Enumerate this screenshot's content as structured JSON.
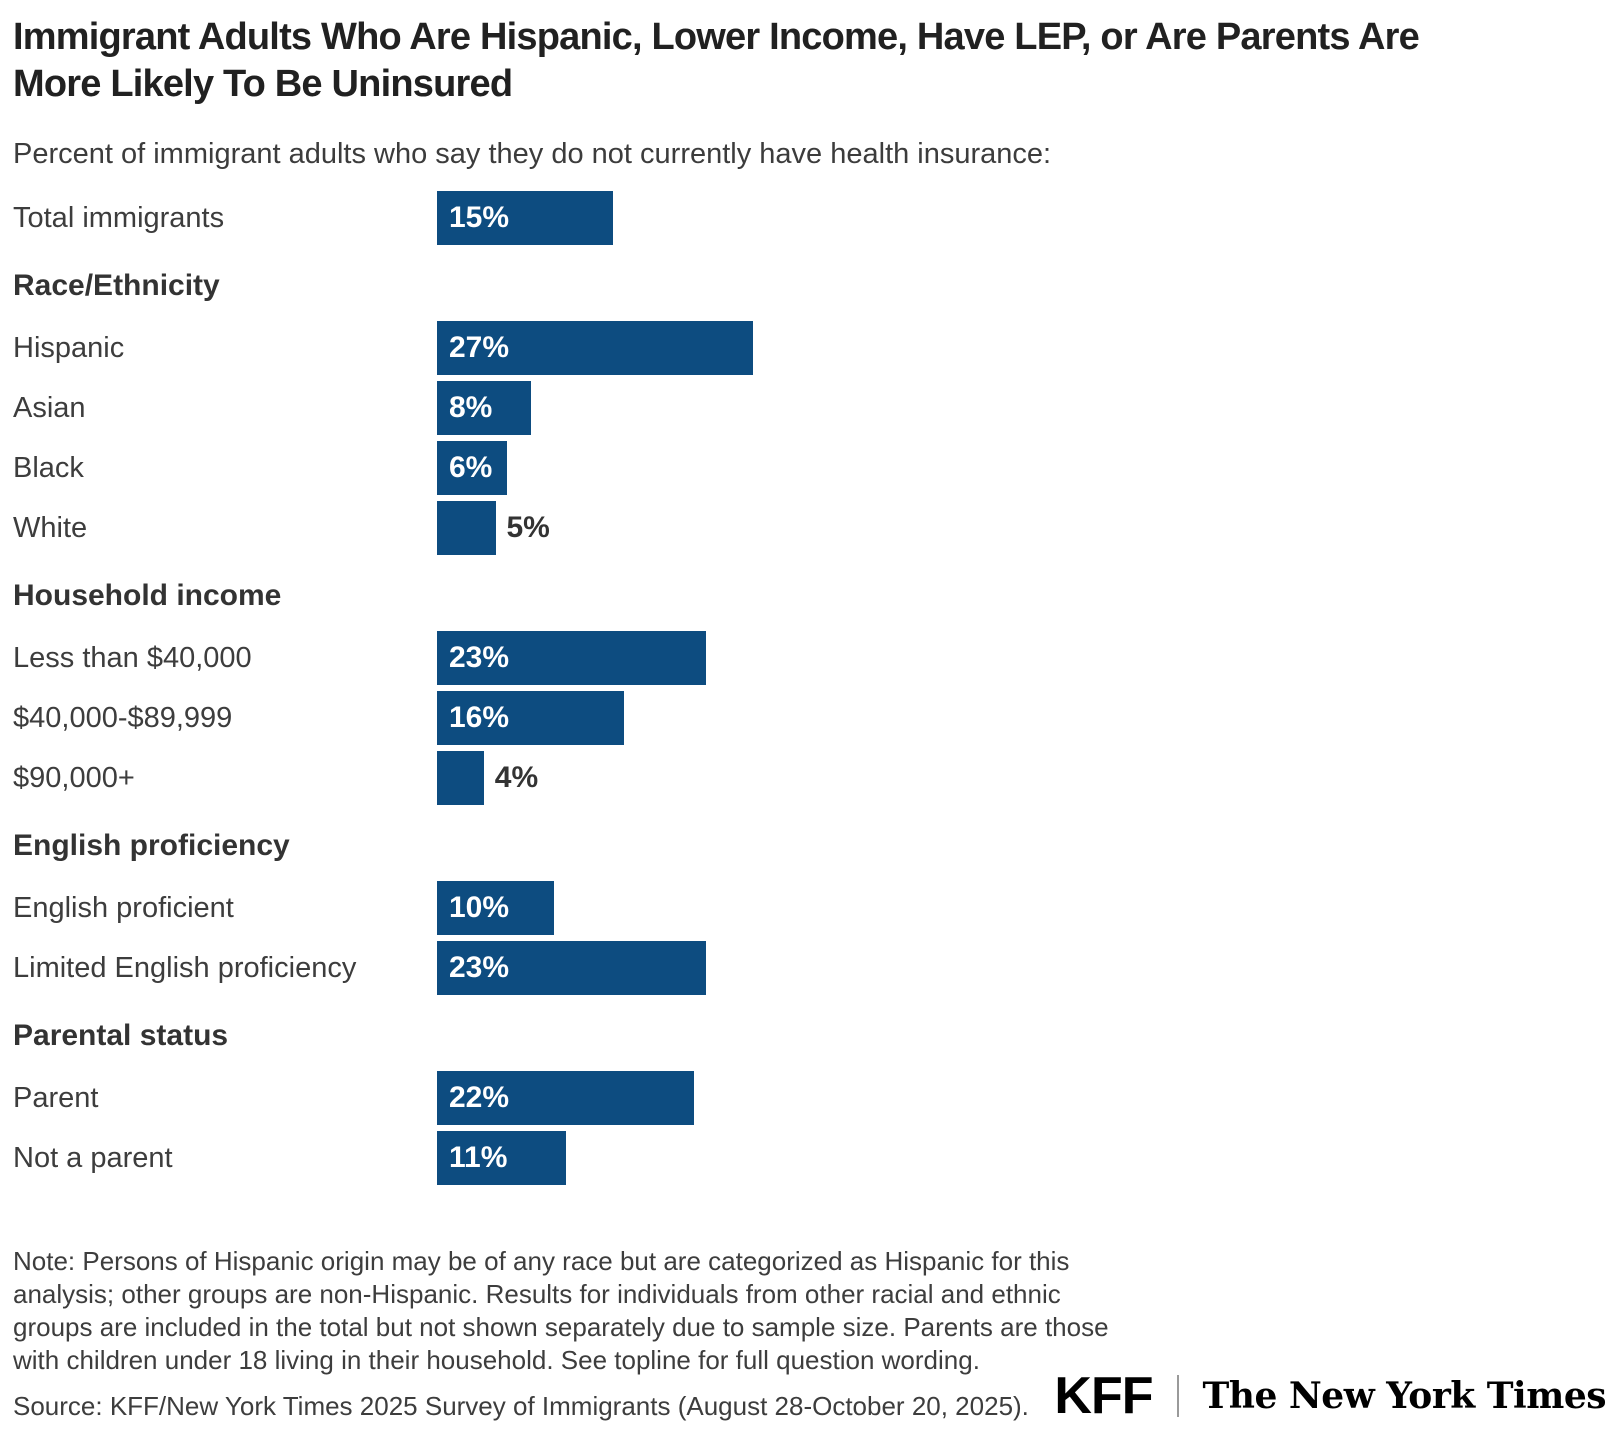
{
  "header": {
    "title_line1": "Immigrant Adults Who Are Hispanic, Lower Income, Have LEP, or Are Parents Are",
    "title_line2": "More Likely To Be Uninsured",
    "subtitle": "Percent of immigrant adults who say they do not currently have health insurance:"
  },
  "colors": {
    "bar": "#0d4c80",
    "bar_label": "#ffffff",
    "outside_label": "#333333"
  },
  "chart_data": {
    "type": "bar",
    "orientation": "horizontal",
    "value_unit": "%",
    "xlim": [
      0,
      27
    ],
    "grid": false,
    "legend": false,
    "title": "Immigrant Adults Who Are Hispanic, Lower Income, Have LEP, or Are Parents Are More Likely To Be Uninsured",
    "subtitle": "Percent of immigrant adults who say they do not currently have health insurance:",
    "rows": [
      {
        "kind": "bar",
        "label": "Total immigrants",
        "value": 15,
        "display": "15%",
        "label_inside": true
      },
      {
        "kind": "header",
        "label": "Race/Ethnicity"
      },
      {
        "kind": "bar",
        "label": "Hispanic",
        "value": 27,
        "display": "27%",
        "label_inside": true
      },
      {
        "kind": "bar",
        "label": "Asian",
        "value": 8,
        "display": "8%",
        "label_inside": true
      },
      {
        "kind": "bar",
        "label": "Black",
        "value": 6,
        "display": "6%",
        "label_inside": true
      },
      {
        "kind": "bar",
        "label": "White",
        "value": 5,
        "display": "5%",
        "label_inside": false
      },
      {
        "kind": "header",
        "label": "Household income"
      },
      {
        "kind": "bar",
        "label": "Less than $40,000",
        "value": 23,
        "display": "23%",
        "label_inside": true
      },
      {
        "kind": "bar",
        "label": "$40,000-$89,999",
        "value": 16,
        "display": "16%",
        "label_inside": true
      },
      {
        "kind": "bar",
        "label": "$90,000+",
        "value": 4,
        "display": "4%",
        "label_inside": false
      },
      {
        "kind": "header",
        "label": "English proficiency"
      },
      {
        "kind": "bar",
        "label": "English proficient",
        "value": 10,
        "display": "10%",
        "label_inside": true
      },
      {
        "kind": "bar",
        "label": "Limited English proficiency",
        "value": 23,
        "display": "23%",
        "label_inside": true
      },
      {
        "kind": "header",
        "label": "Parental status"
      },
      {
        "kind": "bar",
        "label": "Parent",
        "value": 22,
        "display": "22%",
        "label_inside": true
      },
      {
        "kind": "bar",
        "label": "Not a parent",
        "value": 11,
        "display": "11%",
        "label_inside": true
      }
    ]
  },
  "footer": {
    "note_lines": [
      "Note: Persons of Hispanic origin may be of any race but are categorized as Hispanic for this",
      "analysis; other groups are non-Hispanic. Results for individuals from other racial and ethnic",
      "groups are included in the total but not shown separately due to sample size. Parents are those",
      "with children under 18 living in their household. See topline for full question wording.",
      ""
    ],
    "source": "Source: KFF/New York Times 2025 Survey of Immigrants (August 28-October 20, 2025).",
    "logos": {
      "kff": "KFF",
      "nyt": "The New York Times"
    }
  }
}
